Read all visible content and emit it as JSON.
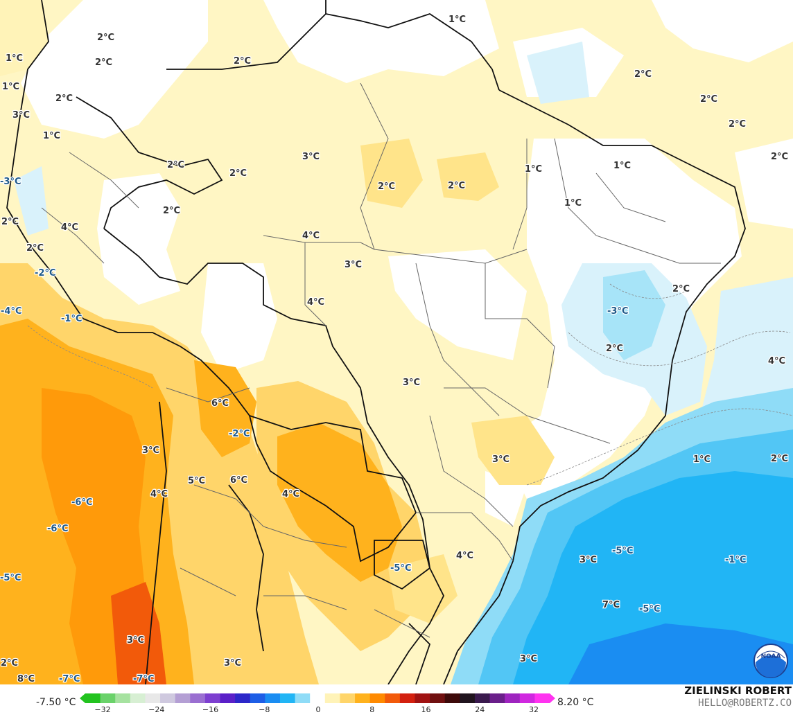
{
  "legend": {
    "min_label": "-7.50 °C",
    "max_label": "8.20 °C",
    "ticks": [
      "−32",
      "−24",
      "−16",
      "−8",
      "0",
      "8",
      "16",
      "24",
      "32"
    ],
    "colors": [
      "#22c31f",
      "#6ad26a",
      "#a6e2a0",
      "#d7efd3",
      "#e8e8e8",
      "#cfc9df",
      "#b49fd4",
      "#9a6fd1",
      "#7d3fd0",
      "#5a20c8",
      "#2c27c9",
      "#1e5ee6",
      "#1a8df2",
      "#21b5f5",
      "#8fdcf7",
      "#ffffff",
      "#fff3b8",
      "#ffd56a",
      "#ffb21d",
      "#ff8a00",
      "#f25a0a",
      "#d3200f",
      "#a01212",
      "#701010",
      "#3d0a0a",
      "#20141e",
      "#3a1a4e",
      "#6a1f8a",
      "#9e24bf",
      "#d028e0",
      "#ff33f0"
    ]
  },
  "branding": {
    "author": "ZIELINSKI ROBERT",
    "email": "HELLO@ROBERTZ.CO",
    "logo_text": "NOAA",
    "logo_icon": "noaa-logo"
  },
  "labels": [
    {
      "text": "1°C",
      "c": "#333333"
    },
    {
      "text": "2°C",
      "c": "#333333"
    },
    {
      "text": "2°C",
      "c": "#333333"
    },
    {
      "text": "1°C",
      "c": "#333333"
    },
    {
      "text": "1°C",
      "c": "#333333"
    },
    {
      "text": "2°C",
      "c": "#333333"
    },
    {
      "text": "2°C",
      "c": "#333333"
    },
    {
      "text": "3°C",
      "c": "#333333"
    },
    {
      "text": "1°C",
      "c": "#333333"
    },
    {
      "text": "2°C",
      "c": "#333333"
    },
    {
      "text": "2°C",
      "c": "#333333"
    },
    {
      "text": "2°C",
      "c": "#333333"
    },
    {
      "text": "2°C",
      "c": "#333333"
    },
    {
      "text": "2°C",
      "c": "#333333"
    },
    {
      "text": "3°C",
      "c": "#333333"
    },
    {
      "text": "2°C",
      "c": "#333333"
    },
    {
      "text": "1°C",
      "c": "#333333"
    },
    {
      "text": "2°C",
      "c": "#333333"
    },
    {
      "text": "-3°C",
      "c": "#1f5a8a"
    },
    {
      "text": "2°C",
      "c": "#333333"
    },
    {
      "text": "2°C",
      "c": "#333333"
    },
    {
      "text": "1°C",
      "c": "#333333"
    },
    {
      "text": "1°C",
      "c": "#333333"
    },
    {
      "text": "2°C",
      "c": "#333333"
    },
    {
      "text": "4°C",
      "c": "#333333"
    },
    {
      "text": "4°C",
      "c": "#333333"
    },
    {
      "text": "2°C",
      "c": "#333333"
    },
    {
      "text": "-2°C",
      "c": "#1f5a8a"
    },
    {
      "text": "3°C",
      "c": "#333333"
    },
    {
      "text": "2°C",
      "c": "#333333"
    },
    {
      "text": "-4°C",
      "c": "#1f5a8a"
    },
    {
      "text": "4°C",
      "c": "#333333"
    },
    {
      "text": "-3°C",
      "c": "#1f5a8a"
    },
    {
      "text": "-1°C",
      "c": "#1f5a8a"
    },
    {
      "text": "2°C",
      "c": "#333333"
    },
    {
      "text": "4°C",
      "c": "#333333"
    },
    {
      "text": "3°C",
      "c": "#333333"
    },
    {
      "text": "6°C",
      "c": "#333333"
    },
    {
      "text": "-2°C",
      "c": "#1f5a8a"
    },
    {
      "text": "3°C",
      "c": "#333333"
    },
    {
      "text": "1°C",
      "c": "#333333"
    },
    {
      "text": "3°C",
      "c": "#333333"
    },
    {
      "text": "2°C",
      "c": "#333333"
    },
    {
      "text": "5°C",
      "c": "#333333"
    },
    {
      "text": "6°C",
      "c": "#333333"
    },
    {
      "text": "4°C",
      "c": "#333333"
    },
    {
      "text": "4°C",
      "c": "#333333"
    },
    {
      "text": "-6°C",
      "c": "#1f5a8a"
    },
    {
      "text": "-6°C",
      "c": "#1f5a8a"
    },
    {
      "text": "3°C",
      "c": "#333333"
    },
    {
      "text": "-5°C",
      "c": "#1f5a8a"
    },
    {
      "text": "4°C",
      "c": "#333333"
    },
    {
      "text": "-1°C",
      "c": "#1f5a8a"
    },
    {
      "text": "-5°C",
      "c": "#1f5a8a"
    },
    {
      "text": "-5°C",
      "c": "#1f5a8a"
    },
    {
      "text": "7°C",
      "c": "#333333"
    },
    {
      "text": "-5°C",
      "c": "#1f5a8a"
    },
    {
      "text": "3°C",
      "c": "#333333"
    },
    {
      "text": "3°C",
      "c": "#333333"
    },
    {
      "text": "2°C",
      "c": "#333333"
    },
    {
      "text": "3°C",
      "c": "#333333"
    },
    {
      "text": "8°C",
      "c": "#333333"
    },
    {
      "text": "-7°C",
      "c": "#1f5a8a"
    },
    {
      "text": "-7°C",
      "c": "#1f5a8a"
    }
  ]
}
